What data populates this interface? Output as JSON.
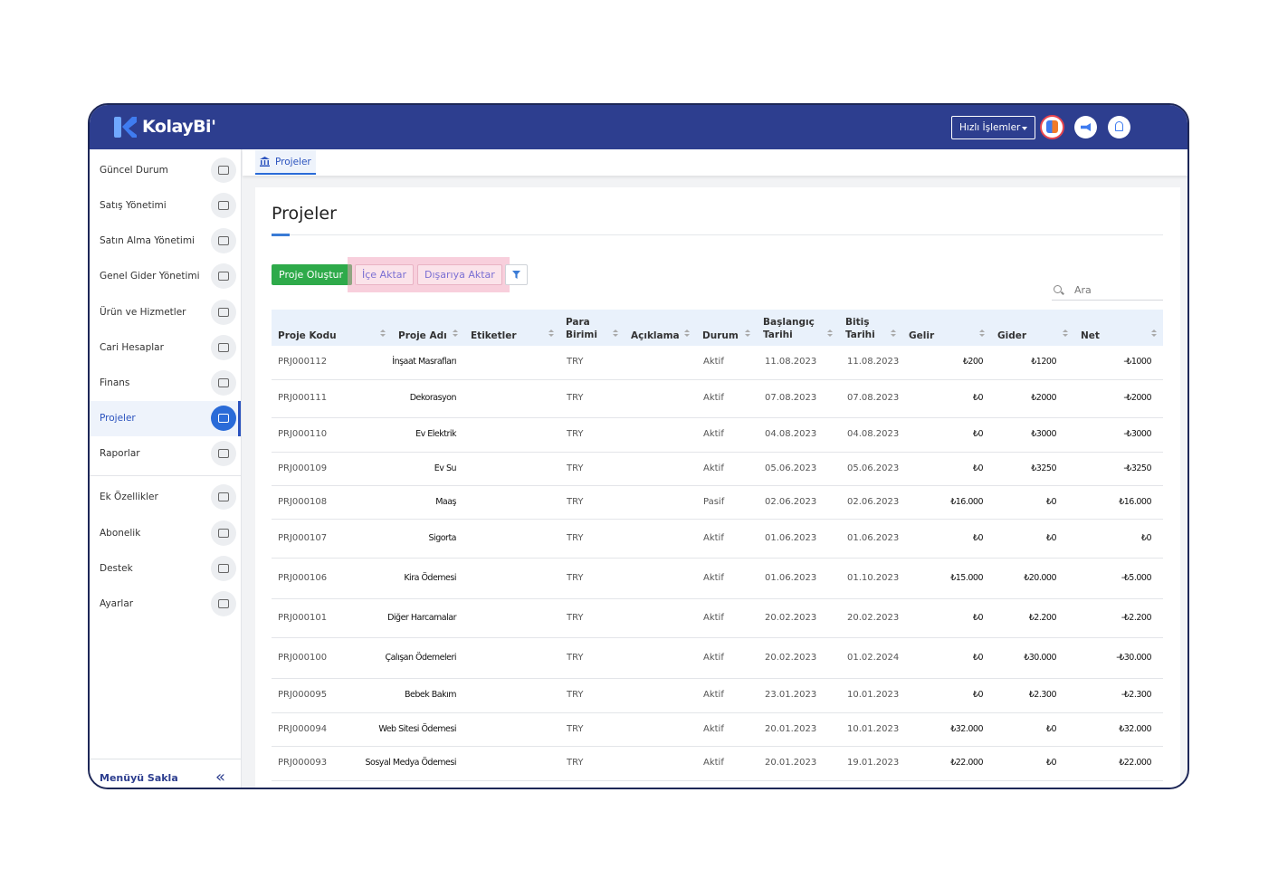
{
  "header": {
    "logo": "KolayBi'",
    "quick_actions": "Hızlı İşlemler"
  },
  "sidebar": {
    "items": [
      {
        "label": "Güncel Durum"
      },
      {
        "label": "Satış Yönetimi"
      },
      {
        "label": "Satın Alma Yönetimi"
      },
      {
        "label": "Genel Gider Yönetimi"
      },
      {
        "label": "Ürün ve Hizmetler"
      },
      {
        "label": "Cari Hesaplar"
      },
      {
        "label": "Finans"
      },
      {
        "label": "Projeler",
        "active": true
      },
      {
        "label": "Raporlar"
      },
      {
        "label": "Ek Özellikler"
      },
      {
        "label": "Abonelik"
      },
      {
        "label": "Destek"
      },
      {
        "label": "Ayarlar"
      }
    ],
    "footer": "Menüyü Sakla"
  },
  "tab": "Projeler",
  "page": {
    "title": "Projeler",
    "buttons": {
      "create": "Proje Oluştur",
      "import": "İçe Aktar",
      "export": "Dışarıya Aktar"
    },
    "search_placeholder": "Ara"
  },
  "table": {
    "columns": [
      "Proje Kodu",
      "Proje Adı",
      "Etiketler",
      "Para Birimi",
      "Açıklama",
      "Durum",
      "Başlangıç Tarihi",
      "Bitiş Tarihi",
      "Gelir",
      "Gider",
      "Net"
    ],
    "rows": [
      {
        "code": "PRJ000112",
        "name": "İnşaat Masrafları",
        "currency": "TRY",
        "status": "Aktif",
        "start": "11.08.2023",
        "end": "11.08.2023",
        "income": "₺200",
        "expense": "₺1200",
        "net": "-₺1000"
      },
      {
        "code": "PRJ000111",
        "name": "Dekorasyon",
        "currency": "TRY",
        "status": "Aktif",
        "start": "07.08.2023",
        "end": "07.08.2023",
        "income": "₺0",
        "expense": "₺2000",
        "net": "-₺2000"
      },
      {
        "code": "PRJ000110",
        "name": "Ev Elektrik",
        "currency": "TRY",
        "status": "Aktif",
        "start": "04.08.2023",
        "end": "04.08.2023",
        "income": "₺0",
        "expense": "₺3000",
        "net": "-₺3000"
      },
      {
        "code": "PRJ000109",
        "name": "Ev Su",
        "currency": "TRY",
        "status": "Aktif",
        "start": "05.06.2023",
        "end": "05.06.2023",
        "income": "₺0",
        "expense": "₺3250",
        "net": "-₺3250"
      },
      {
        "code": "PRJ000108",
        "name": "Maaş",
        "currency": "TRY",
        "status": "Pasif",
        "start": "02.06.2023",
        "end": "02.06.2023",
        "income": "₺16.000",
        "expense": "₺0",
        "net": "₺16.000"
      },
      {
        "code": "PRJ000107",
        "name": "Sigorta",
        "currency": "TRY",
        "status": "Aktif",
        "start": "01.06.2023",
        "end": "01.06.2023",
        "income": "₺0",
        "expense": "₺0",
        "net": "₺0"
      },
      {
        "code": "PRJ000106",
        "name": "Kira Ödemesi",
        "currency": "TRY",
        "status": "Aktif",
        "start": "01.06.2023",
        "end": "01.10.2023",
        "income": "₺15.000",
        "expense": "₺20.000",
        "net": "-₺5.000"
      },
      {
        "code": "PRJ000101",
        "name": "Diğer Harcamalar",
        "currency": "TRY",
        "status": "Aktif",
        "start": "20.02.2023",
        "end": "20.02.2023",
        "income": "₺0",
        "expense": "₺2.200",
        "net": "-₺2.200"
      },
      {
        "code": "PRJ000100",
        "name": "Çalışan Ödemeleri",
        "currency": "TRY",
        "status": "Aktif",
        "start": "20.02.2023",
        "end": "01.02.2024",
        "income": "₺0",
        "expense": "₺30.000",
        "net": "-₺30.000"
      },
      {
        "code": "PRJ000095",
        "name": "Bebek Bakım",
        "currency": "TRY",
        "status": "Aktif",
        "start": "23.01.2023",
        "end": "10.01.2023",
        "income": "₺0",
        "expense": "₺2.300",
        "net": "-₺2.300"
      },
      {
        "code": "PRJ000094",
        "name": "Web Sitesi Ödemesi",
        "currency": "TRY",
        "status": "Aktif",
        "start": "20.01.2023",
        "end": "10.01.2023",
        "income": "₺32.000",
        "expense": "₺0",
        "net": "₺32.000"
      },
      {
        "code": "PRJ000093",
        "name": "Sosyal Medya Ödemesi",
        "currency": "TRY",
        "status": "Aktif",
        "start": "20.01.2023",
        "end": "19.01.2023",
        "income": "₺22.000",
        "expense": "₺0",
        "net": "₺22.000"
      }
    ]
  }
}
